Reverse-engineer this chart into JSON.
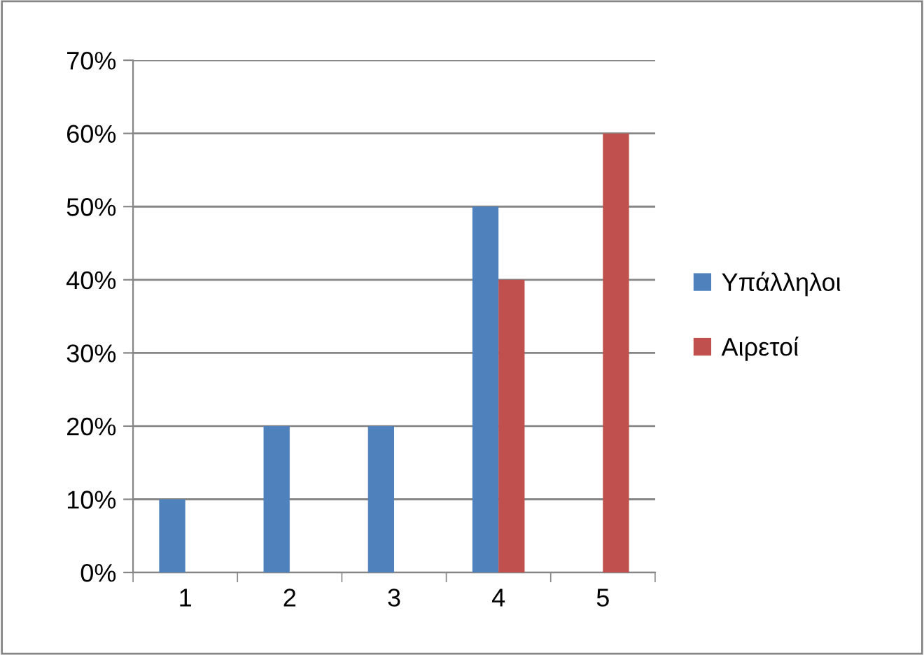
{
  "chart_data": {
    "type": "bar",
    "categories": [
      "1",
      "2",
      "3",
      "4",
      "5"
    ],
    "series": [
      {
        "name": "Υπάλληλοι",
        "color": "#4f81bd",
        "values": [
          10,
          20,
          20,
          50,
          null
        ]
      },
      {
        "name": "Αιρετοί",
        "color": "#c0504d",
        "values": [
          null,
          null,
          null,
          40,
          60
        ]
      }
    ],
    "ylim": [
      0,
      70
    ],
    "yticks": [
      {
        "value": 0,
        "label": "0%"
      },
      {
        "value": 10,
        "label": "10%"
      },
      {
        "value": 20,
        "label": "20%"
      },
      {
        "value": 30,
        "label": "30%"
      },
      {
        "value": 40,
        "label": "40%"
      },
      {
        "value": 50,
        "label": "50%"
      },
      {
        "value": 60,
        "label": "60%"
      },
      {
        "value": 70,
        "label": "70%"
      }
    ],
    "grid": "y",
    "legend": "right"
  }
}
